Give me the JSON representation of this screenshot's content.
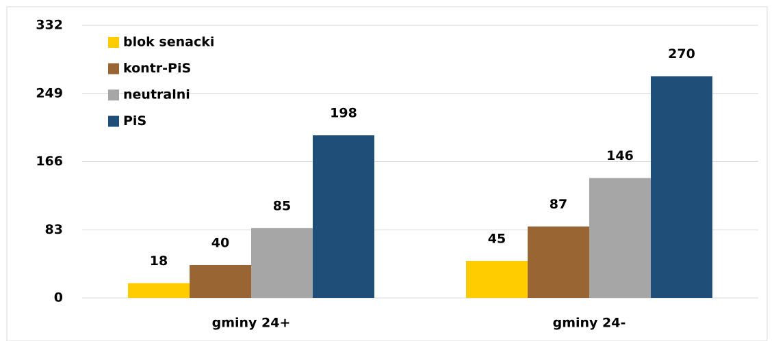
{
  "chart_data": {
    "type": "bar",
    "categories": [
      "gminy 24+",
      "gminy 24-"
    ],
    "series": [
      {
        "name": "blok senacki",
        "color": "#FFCC00",
        "values": [
          18,
          45
        ]
      },
      {
        "name": "kontr-PiS",
        "color": "#996633",
        "values": [
          40,
          87
        ]
      },
      {
        "name": "neutralni",
        "color": "#A6A6A6",
        "values": [
          85,
          146
        ]
      },
      {
        "name": "PiS",
        "color": "#1F4E79",
        "values": [
          198,
          270
        ]
      }
    ],
    "ylim": [
      0,
      332
    ],
    "yticks": [
      0,
      83,
      166,
      249,
      332
    ],
    "grid": true,
    "legend": "top-left"
  }
}
